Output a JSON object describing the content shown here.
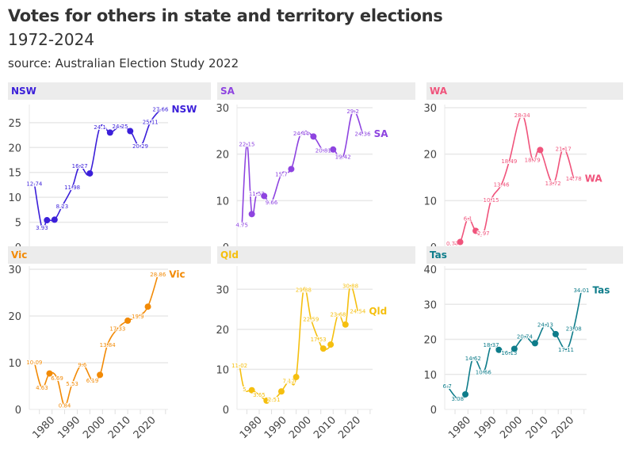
{
  "header": {
    "title": "Votes for others in state and territory elections",
    "subtitle": "1972-2024",
    "source": "source: Australian Election Study 2022"
  },
  "chart_data": {
    "type": "line",
    "title": "Votes for others in state and territory elections",
    "subtitle": "1972-2024",
    "caption": "source: Australian Election Study 2022",
    "xlabel": "",
    "ylabel": "",
    "x_ticks": [
      1980,
      1990,
      2000,
      2010,
      2020
    ],
    "grid": true,
    "legend": "end-of-line labels",
    "panels": [
      {
        "name": "NSW",
        "color": "#3b1fd9",
        "ylim": [
          0,
          28
        ],
        "y_ticks": [
          0,
          5,
          10,
          15,
          20,
          25
        ],
        "points": [
          {
            "year": 1973,
            "value": 12.74,
            "label": "12.74"
          },
          {
            "year": 1976,
            "value": 3.93,
            "label": "3.93"
          },
          {
            "year": 1978,
            "value": 5.4,
            "label": ""
          },
          {
            "year": 1981,
            "value": 5.5,
            "label": ""
          },
          {
            "year": 1984,
            "value": 8.23,
            "label": "8.23"
          },
          {
            "year": 1988,
            "value": 11.98,
            "label": "11.98"
          },
          {
            "year": 1991,
            "value": 16.27,
            "label": "16.27"
          },
          {
            "year": 1995,
            "value": 14.8,
            "label": ""
          },
          {
            "year": 1999,
            "value": 24.1,
            "label": "24.1"
          },
          {
            "year": 2003,
            "value": 23.0,
            "label": ""
          },
          {
            "year": 2007,
            "value": 24.25,
            "label": "24.25"
          },
          {
            "year": 2011,
            "value": 23.3,
            "label": ""
          },
          {
            "year": 2015,
            "value": 20.29,
            "label": "20.29"
          },
          {
            "year": 2019,
            "value": 25.11,
            "label": "25.11"
          },
          {
            "year": 2023,
            "value": 27.66,
            "label": "27.66"
          }
        ]
      },
      {
        "name": "SA",
        "color": "#8e44e0",
        "ylim": [
          0,
          30
        ],
        "y_ticks": [
          0,
          10,
          20,
          30
        ],
        "points": [
          {
            "year": 1973,
            "value": 4.75,
            "label": "4.75"
          },
          {
            "year": 1975,
            "value": 22.15,
            "label": "22.15"
          },
          {
            "year": 1977,
            "value": 7.1,
            "label": ""
          },
          {
            "year": 1979,
            "value": 11.52,
            "label": "11.52"
          },
          {
            "year": 1982,
            "value": 11.0,
            "label": ""
          },
          {
            "year": 1985,
            "value": 9.66,
            "label": "9.66"
          },
          {
            "year": 1989,
            "value": 15.7,
            "label": "15.7"
          },
          {
            "year": 1993,
            "value": 16.8,
            "label": ""
          },
          {
            "year": 1997,
            "value": 24.44,
            "label": "24.44"
          },
          {
            "year": 2002,
            "value": 23.8,
            "label": ""
          },
          {
            "year": 2006,
            "value": 20.81,
            "label": "20.81"
          },
          {
            "year": 2010,
            "value": 21.0,
            "label": ""
          },
          {
            "year": 2014,
            "value": 19.42,
            "label": "19.42"
          },
          {
            "year": 2018,
            "value": 29.2,
            "label": "29.2"
          },
          {
            "year": 2022,
            "value": 24.36,
            "label": "24.36"
          }
        ]
      },
      {
        "name": "WA",
        "color": "#f0547c",
        "ylim": [
          0,
          30
        ],
        "y_ticks": [
          0,
          10,
          20,
          30
        ],
        "points": [
          {
            "year": 1974,
            "value": 0.77,
            "label": "0.77"
          },
          {
            "year": 1977,
            "value": 1.1,
            "label": ""
          },
          {
            "year": 1980,
            "value": 6.1,
            "label": "6.1"
          },
          {
            "year": 1983,
            "value": 3.5,
            "label": ""
          },
          {
            "year": 1986,
            "value": 2.97,
            "label": "2.97"
          },
          {
            "year": 1989,
            "value": 10.15,
            "label": "10.15"
          },
          {
            "year": 1993,
            "value": 13.46,
            "label": "13.46"
          },
          {
            "year": 1996,
            "value": 18.49,
            "label": "18.49"
          },
          {
            "year": 2001,
            "value": 28.34,
            "label": "28.34"
          },
          {
            "year": 2005,
            "value": 18.79,
            "label": "18.79"
          },
          {
            "year": 2008,
            "value": 20.9,
            "label": ""
          },
          {
            "year": 2013,
            "value": 13.72,
            "label": "13.72"
          },
          {
            "year": 2017,
            "value": 21.17,
            "label": "21.17"
          },
          {
            "year": 2021,
            "value": 14.78,
            "label": "14.78"
          }
        ]
      },
      {
        "name": "Vic",
        "color": "#f28a06",
        "ylim": [
          0,
          30
        ],
        "y_ticks": [
          0,
          10,
          20,
          30
        ],
        "points": [
          {
            "year": 1973,
            "value": 10.09,
            "label": "10.09"
          },
          {
            "year": 1976,
            "value": 4.63,
            "label": "4.63"
          },
          {
            "year": 1979,
            "value": 7.7,
            "label": ""
          },
          {
            "year": 1982,
            "value": 6.69,
            "label": "6.69"
          },
          {
            "year": 1985,
            "value": 0.84,
            "label": "0.84"
          },
          {
            "year": 1988,
            "value": 5.53,
            "label": "5.53"
          },
          {
            "year": 1992,
            "value": 9.6,
            "label": "9.6"
          },
          {
            "year": 1996,
            "value": 6.19,
            "label": "6.19"
          },
          {
            "year": 1999,
            "value": 7.4,
            "label": ""
          },
          {
            "year": 2002,
            "value": 13.84,
            "label": "13.84"
          },
          {
            "year": 2006,
            "value": 17.33,
            "label": "17.33"
          },
          {
            "year": 2010,
            "value": 19.0,
            "label": ""
          },
          {
            "year": 2014,
            "value": 19.9,
            "label": "19.9"
          },
          {
            "year": 2018,
            "value": 22.0,
            "label": ""
          },
          {
            "year": 2022,
            "value": 28.86,
            "label": "28.86"
          }
        ]
      },
      {
        "name": "Qld",
        "color": "#f5bf0f",
        "ylim": [
          0,
          35
        ],
        "y_ticks": [
          0,
          10,
          20,
          30
        ],
        "points": [
          {
            "year": 1972,
            "value": 11.02,
            "label": "11.02"
          },
          {
            "year": 1974,
            "value": 5.0,
            "label": "5"
          },
          {
            "year": 1977,
            "value": 4.8,
            "label": ""
          },
          {
            "year": 1980,
            "value": 3.65,
            "label": "3.65"
          },
          {
            "year": 1983,
            "value": 2.2,
            "label": ""
          },
          {
            "year": 1986,
            "value": 2.51,
            "label": "2.51"
          },
          {
            "year": 1989,
            "value": 4.5,
            "label": ""
          },
          {
            "year": 1992,
            "value": 7.12,
            "label": "7.12"
          },
          {
            "year": 1995,
            "value": 8.1,
            "label": ""
          },
          {
            "year": 1998,
            "value": 29.88,
            "label": "29.88"
          },
          {
            "year": 2001,
            "value": 22.59,
            "label": "22.59"
          },
          {
            "year": 2004,
            "value": 17.53,
            "label": "17.53"
          },
          {
            "year": 2006,
            "value": 15.2,
            "label": ""
          },
          {
            "year": 2009,
            "value": 16.2,
            "label": ""
          },
          {
            "year": 2012,
            "value": 23.68,
            "label": "23.68"
          },
          {
            "year": 2015,
            "value": 21.2,
            "label": ""
          },
          {
            "year": 2017,
            "value": 30.88,
            "label": "30.88"
          },
          {
            "year": 2020,
            "value": 24.54,
            "label": "24.54"
          }
        ]
      },
      {
        "name": "Tas",
        "color": "#0e7c8a",
        "ylim": [
          0,
          40
        ],
        "y_ticks": [
          0,
          10,
          20,
          30,
          40
        ],
        "points": [
          {
            "year": 1972,
            "value": 6.7,
            "label": "6.7"
          },
          {
            "year": 1976,
            "value": 3.08,
            "label": "3.08"
          },
          {
            "year": 1979,
            "value": 4.3,
            "label": ""
          },
          {
            "year": 1982,
            "value": 14.62,
            "label": "14.62"
          },
          {
            "year": 1986,
            "value": 10.66,
            "label": "10.66"
          },
          {
            "year": 1989,
            "value": 18.37,
            "label": "18.37"
          },
          {
            "year": 1992,
            "value": 17.0,
            "label": ""
          },
          {
            "year": 1996,
            "value": 16.13,
            "label": "16.13"
          },
          {
            "year": 1998,
            "value": 17.3,
            "label": ""
          },
          {
            "year": 2002,
            "value": 20.74,
            "label": "20.74"
          },
          {
            "year": 2006,
            "value": 18.9,
            "label": ""
          },
          {
            "year": 2010,
            "value": 24.13,
            "label": "24.13"
          },
          {
            "year": 2014,
            "value": 21.5,
            "label": ""
          },
          {
            "year": 2018,
            "value": 17.11,
            "label": "17.11"
          },
          {
            "year": 2021,
            "value": 23.08,
            "label": "23.08"
          },
          {
            "year": 2024,
            "value": 34.01,
            "label": "34.01"
          }
        ]
      }
    ]
  }
}
